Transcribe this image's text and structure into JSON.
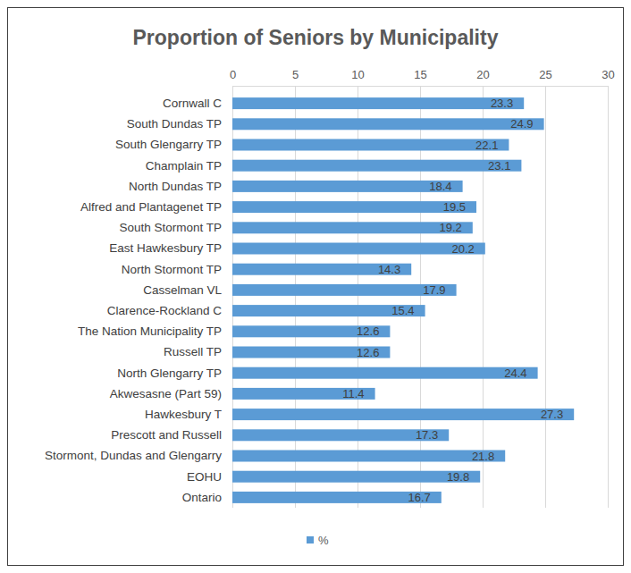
{
  "chart_data": {
    "type": "bar",
    "orientation": "horizontal",
    "title": "Proportion of Seniors by Municipality",
    "categories": [
      "Cornwall C",
      "South Dundas TP",
      "South Glengarry TP",
      "Champlain TP",
      "North Dundas TP",
      "Alfred and Plantagenet TP",
      "South Stormont TP",
      "East Hawkesbury TP",
      "North Stormont TP",
      "Casselman VL",
      "Clarence-Rockland C",
      "The Nation Municipality TP",
      "Russell TP",
      "North Glengarry TP",
      "Akwesasne (Part 59)",
      "Hawkesbury T",
      "Prescott and Russell",
      "Stormont, Dundas and Glengarry",
      "EOHU",
      "Ontario"
    ],
    "series": [
      {
        "name": "%",
        "color": "#5b9bd5",
        "values": [
          23.3,
          24.9,
          22.1,
          23.1,
          18.4,
          19.5,
          19.2,
          20.2,
          14.3,
          17.9,
          15.4,
          12.6,
          12.6,
          24.4,
          11.4,
          27.3,
          17.3,
          21.8,
          19.8,
          16.7
        ]
      }
    ],
    "xlim": [
      0,
      30
    ],
    "xticks": [
      0,
      5,
      10,
      15,
      20,
      25,
      30
    ],
    "grid": true,
    "data_labels": true,
    "legend": "bottom"
  }
}
